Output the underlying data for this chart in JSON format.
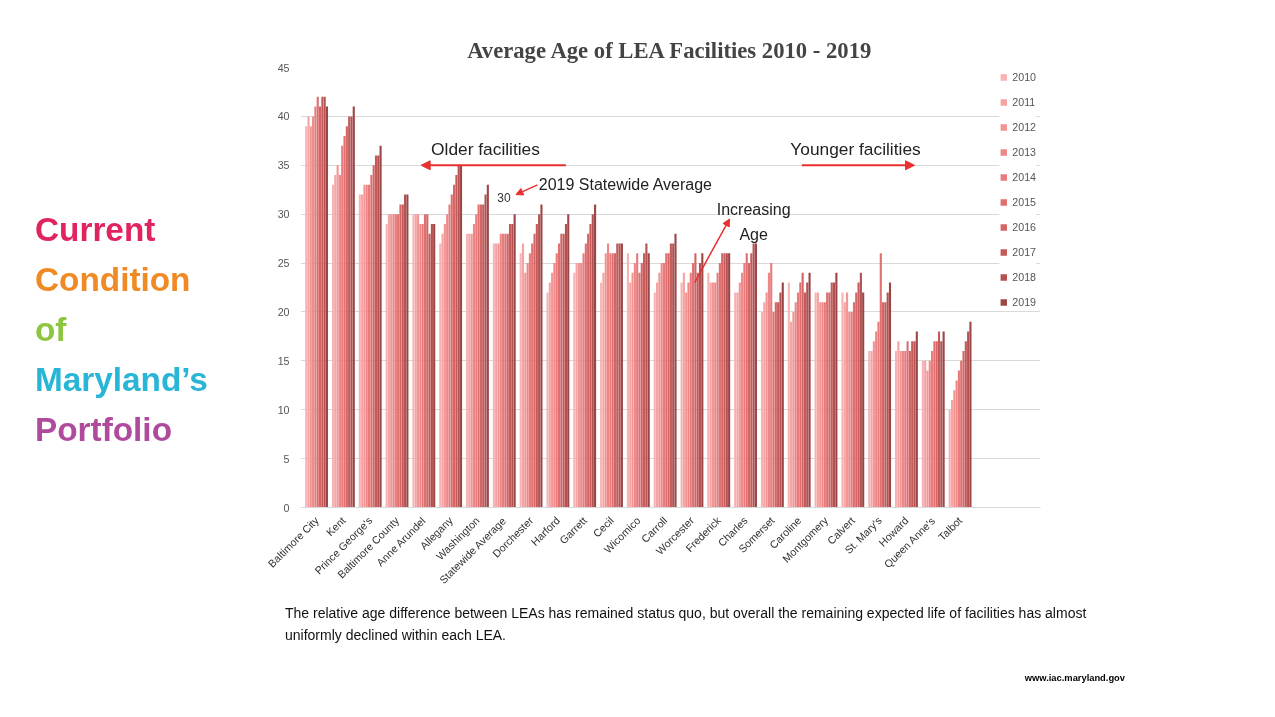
{
  "chart_data": {
    "type": "bar",
    "title": "Average Age of LEA Facilities 2010 - 2019",
    "categories": [
      "Baltimore City",
      "Kent",
      "Prince George's",
      "Baltimore County",
      "Anne Arundel",
      "Allegany",
      "Washington",
      "Statewide Average",
      "Dorchester",
      "Harford",
      "Garrett",
      "Cecil",
      "Wicomico",
      "Carroll",
      "Worcester",
      "Frederick",
      "Charles",
      "Somerset",
      "Caroline",
      "Montgomery",
      "Calvert",
      "St. Mary's",
      "Howard",
      "Queen Anne's",
      "Talbot"
    ],
    "series": [
      {
        "name": "2010",
        "color": "#f7b3b3",
        "values": [
          39,
          33,
          32,
          29,
          30,
          27,
          28,
          27,
          26,
          22,
          24,
          23,
          26,
          22,
          23,
          24,
          22,
          20,
          23,
          22,
          22,
          16,
          16,
          15,
          10
        ]
      },
      {
        "name": "2011",
        "color": "#f5a3a3",
        "values": [
          40,
          34,
          32,
          30,
          30,
          28,
          28,
          27,
          27,
          23,
          25,
          24,
          23,
          23,
          24,
          23,
          22,
          21,
          19,
          22,
          21,
          16,
          17,
          15,
          11
        ]
      },
      {
        "name": "2012",
        "color": "#f29595",
        "values": [
          39,
          35,
          33,
          30,
          30,
          29,
          28,
          27,
          24,
          24,
          25,
          26,
          24,
          24,
          22,
          23,
          23,
          22,
          20,
          21,
          22,
          17,
          16,
          14,
          12
        ]
      },
      {
        "name": "2013",
        "color": "#ee8787",
        "values": [
          40,
          34,
          33,
          30,
          29,
          30,
          29,
          28,
          25,
          25,
          25,
          27,
          25,
          25,
          23,
          23,
          24,
          24,
          21,
          21,
          20,
          18,
          16,
          15,
          13
        ]
      },
      {
        "name": "2014",
        "color": "#e87b7b",
        "values": [
          41,
          37,
          33,
          30,
          29,
          31,
          30,
          28,
          26,
          26,
          26,
          26,
          26,
          25,
          24,
          24,
          25,
          25,
          22,
          21,
          20,
          19,
          16,
          16,
          14
        ]
      },
      {
        "name": "2015",
        "color": "#e06f6f",
        "values": [
          42,
          38,
          34,
          30,
          30,
          32,
          31,
          28,
          27,
          27,
          27,
          26,
          24,
          26,
          25,
          25,
          26,
          20,
          23,
          22,
          21,
          26,
          17,
          17,
          15
        ]
      },
      {
        "name": "2016",
        "color": "#d36565",
        "values": [
          41,
          39,
          35,
          31,
          30,
          33,
          31,
          28,
          28,
          28,
          28,
          26,
          25,
          26,
          26,
          26,
          25,
          21,
          24,
          22,
          22,
          21,
          16,
          17,
          16
        ]
      },
      {
        "name": "2017",
        "color": "#c45a5a",
        "values": [
          42,
          40,
          36,
          31,
          28,
          34,
          31,
          29,
          29,
          28,
          29,
          27,
          26,
          27,
          24,
          26,
          26,
          21,
          22,
          23,
          23,
          21,
          17,
          18,
          17
        ]
      },
      {
        "name": "2018",
        "color": "#b25252",
        "values": [
          42,
          40,
          36,
          32,
          29,
          35,
          32,
          29,
          30,
          29,
          30,
          27,
          27,
          27,
          25,
          26,
          27,
          22,
          23,
          23,
          24,
          22,
          17,
          17,
          18
        ]
      },
      {
        "name": "2019",
        "color": "#9c4646",
        "values": [
          41,
          41,
          37,
          32,
          29,
          35,
          33,
          30,
          31,
          30,
          31,
          27,
          26,
          28,
          26,
          26,
          27,
          23,
          24,
          24,
          22,
          23,
          18,
          18,
          19
        ],
        "value_labels": [
          null,
          null,
          null,
          null,
          null,
          null,
          null,
          "30",
          null,
          null,
          null,
          null,
          null,
          null,
          null,
          null,
          null,
          null,
          null,
          null,
          null,
          null,
          null,
          null,
          null
        ]
      }
    ],
    "ylim": [
      0,
      45
    ],
    "yticks": [
      0,
      5,
      10,
      15,
      20,
      25,
      30,
      35,
      40,
      45
    ],
    "grid": "y",
    "legend": "right",
    "annotations": [
      "Older facilities",
      "Younger facilities",
      "2019 Statewide Average",
      {
        "text": "Increasing Age",
        "x": "Worcester",
        "y": 26
      },
      "The relative age difference between LEAs has remained status quo, but overall the remaining expected life of facilities has almost uniformly declined within each LEA.",
      "Current\nCondition\nof\nMaryland’s\nPortfolio",
      "www.iac.maryland.gov"
    ]
  }
}
